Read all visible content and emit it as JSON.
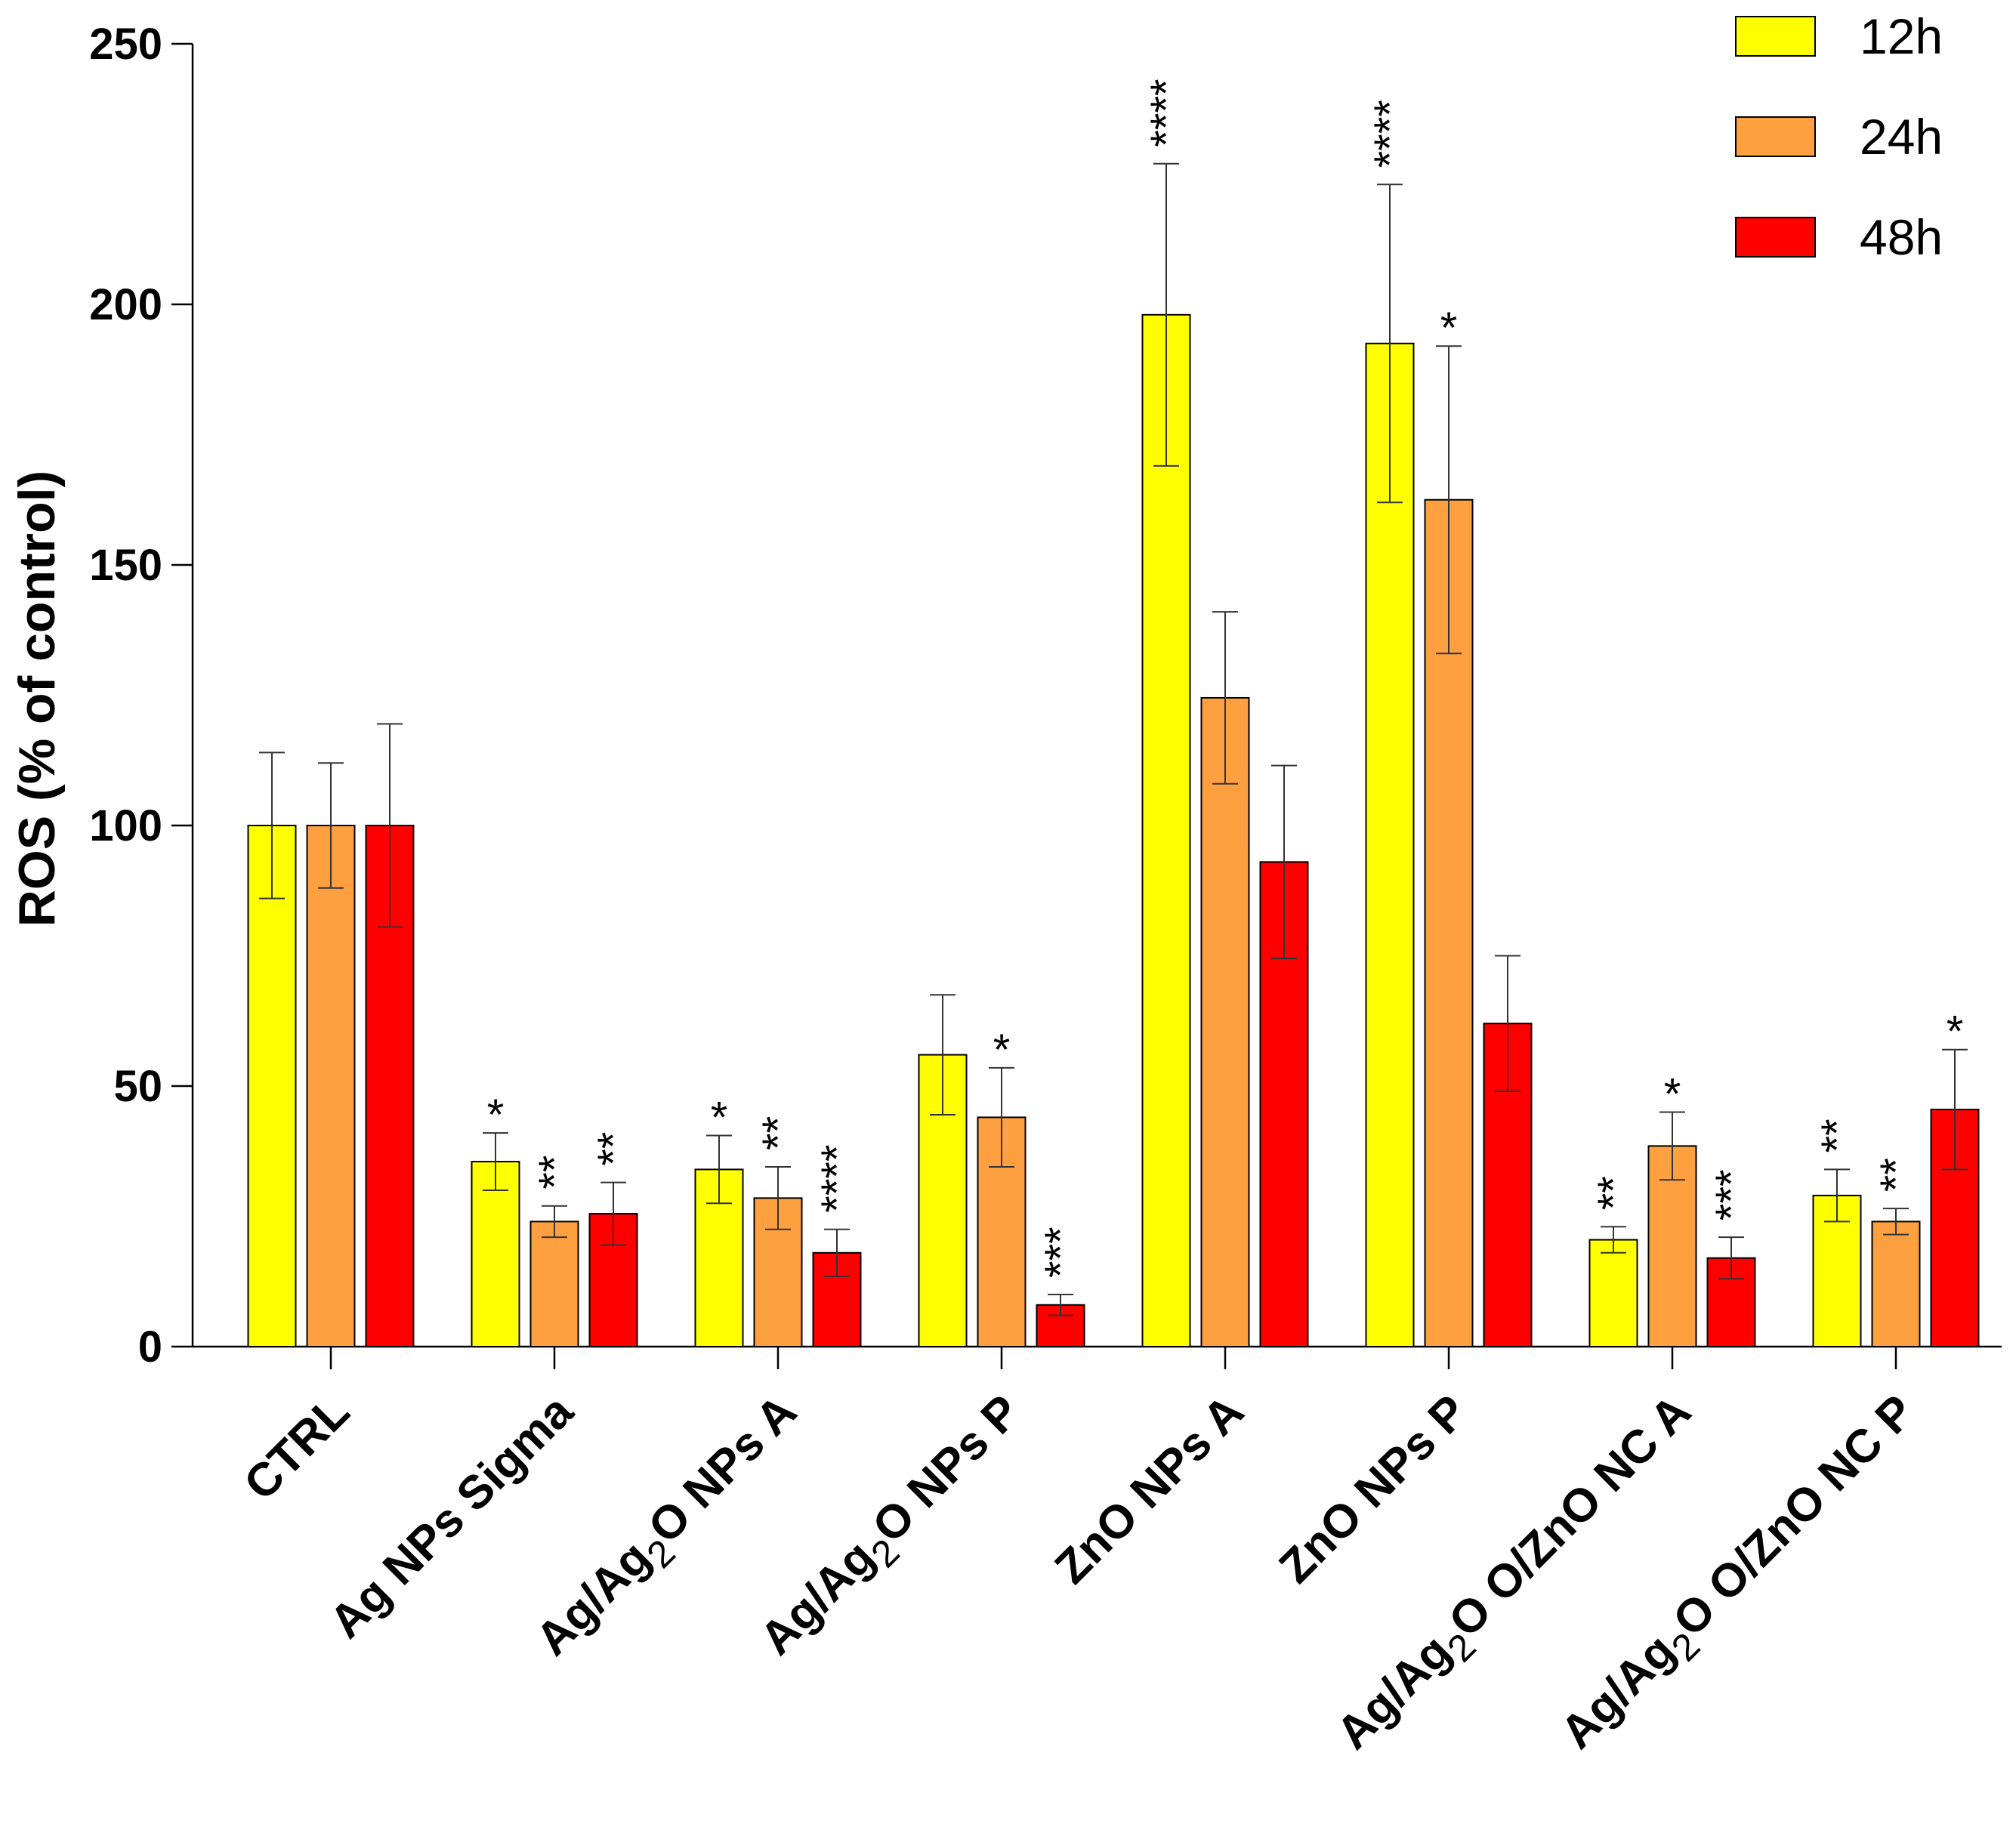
{
  "chart_data": {
    "type": "bar",
    "title": "",
    "xlabel": "",
    "ylabel": "ROS (% of control)",
    "ylim": [
      0,
      250
    ],
    "yticks": [
      "0",
      "50",
      "100",
      "150",
      "200",
      "250"
    ],
    "grid": false,
    "legend_position": "top-right",
    "categories": [
      {
        "base": "CTRL",
        "sub": "",
        "tail": ""
      },
      {
        "base": "Ag NPs Sigma",
        "sub": "",
        "tail": ""
      },
      {
        "base": "Ag/Ag",
        "sub": "2",
        "tail": "O NPs A"
      },
      {
        "base": "Ag/Ag",
        "sub": "2",
        "tail": "O NPs P"
      },
      {
        "base": "ZnO NPs A",
        "sub": "",
        "tail": ""
      },
      {
        "base": "ZnO NPs P",
        "sub": "",
        "tail": ""
      },
      {
        "base": "Ag/Ag",
        "sub": "2",
        "tail": "O O/ZnO NC A"
      },
      {
        "base": "Ag/Ag",
        "sub": "2",
        "tail": "O O/ZnO NC P"
      }
    ],
    "series": [
      {
        "name": "12h",
        "color": "#ffff00",
        "values": [
          100,
          35.5,
          34,
          56,
          198,
          192.5,
          20.5,
          29
        ],
        "errors": [
          14,
          5.5,
          6.5,
          11.5,
          29,
          30.5,
          2.5,
          5
        ],
        "significance": [
          "",
          "*",
          "*",
          "",
          "****",
          "****",
          "**",
          "**"
        ]
      },
      {
        "name": "24h",
        "color": "#ffa040",
        "values": [
          100,
          24,
          28.5,
          44,
          124.5,
          162.5,
          38.5,
          24
        ],
        "errors": [
          12,
          3,
          6,
          9.5,
          16.5,
          29.5,
          6.5,
          2.5
        ],
        "significance": [
          "",
          "**",
          "**",
          "*",
          "",
          "*",
          "*",
          "**"
        ]
      },
      {
        "name": "48h",
        "color": "#ff0000",
        "values": [
          100,
          25.5,
          18,
          8,
          93,
          62,
          17,
          45.5
        ],
        "errors": [
          19.5,
          6,
          4.5,
          2,
          18.5,
          13,
          4,
          11.5
        ],
        "significance": [
          "",
          "**",
          "****",
          "***",
          "",
          "",
          "***",
          "*"
        ]
      }
    ]
  }
}
